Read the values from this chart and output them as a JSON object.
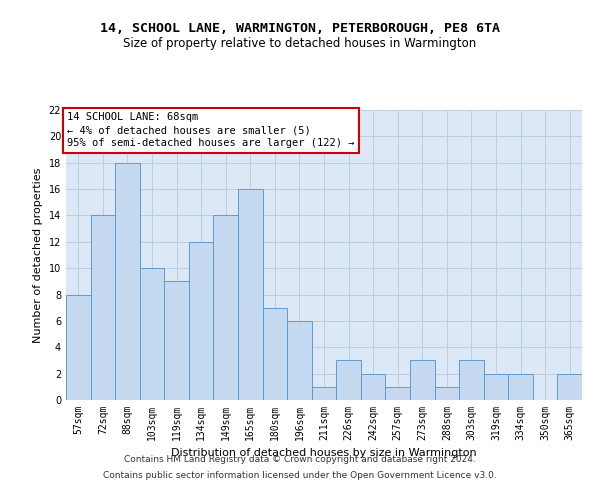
{
  "title_line1": "14, SCHOOL LANE, WARMINGTON, PETERBOROUGH, PE8 6TA",
  "title_line2": "Size of property relative to detached houses in Warmington",
  "xlabel": "Distribution of detached houses by size in Warmington",
  "ylabel": "Number of detached properties",
  "categories": [
    "57sqm",
    "72sqm",
    "88sqm",
    "103sqm",
    "119sqm",
    "134sqm",
    "149sqm",
    "165sqm",
    "180sqm",
    "196sqm",
    "211sqm",
    "226sqm",
    "242sqm",
    "257sqm",
    "273sqm",
    "288sqm",
    "303sqm",
    "319sqm",
    "334sqm",
    "350sqm",
    "365sqm"
  ],
  "values": [
    8,
    14,
    18,
    10,
    9,
    12,
    14,
    16,
    7,
    6,
    1,
    3,
    2,
    1,
    3,
    1,
    3,
    2,
    2,
    0,
    2
  ],
  "bar_color": "#c5d9f0",
  "bar_edge_color": "#5b9bd5",
  "annotation_box_text": "14 SCHOOL LANE: 68sqm\n← 4% of detached houses are smaller (5)\n95% of semi-detached houses are larger (122) →",
  "annotation_box_color": "#ffffff",
  "annotation_box_edge_color": "#cc0000",
  "ylim": [
    0,
    22
  ],
  "yticks": [
    0,
    2,
    4,
    6,
    8,
    10,
    12,
    14,
    16,
    18,
    20,
    22
  ],
  "grid_color": "#b8cfe0",
  "background_color": "#dce8f5",
  "footer_line1": "Contains HM Land Registry data © Crown copyright and database right 2024.",
  "footer_line2": "Contains public sector information licensed under the Open Government Licence v3.0.",
  "title_fontsize": 9.5,
  "subtitle_fontsize": 8.5,
  "annotation_fontsize": 7.5,
  "axis_label_fontsize": 8,
  "tick_fontsize": 7,
  "footer_fontsize": 6.5
}
